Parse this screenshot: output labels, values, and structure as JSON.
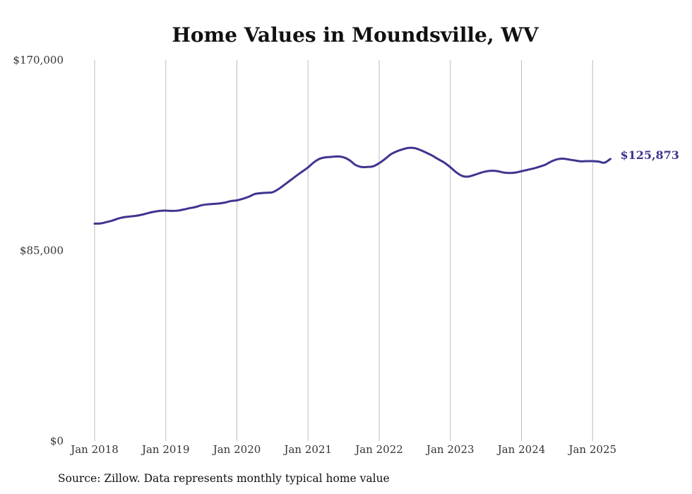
{
  "source_note": "Source: Zillow. Data represents monthly typical home value",
  "chart_data": {
    "type": "line",
    "title": "Home Values in Moundsville, WV",
    "xlabel": "",
    "ylabel": "",
    "ylim": [
      0,
      170000
    ],
    "y_ticks": [
      {
        "value": 170000,
        "label": "$170,000"
      },
      {
        "value": 85000,
        "label": "$85,000"
      },
      {
        "value": 0,
        "label": "$0"
      }
    ],
    "x_ticks": [
      {
        "value": "2018-01",
        "label": "Jan 2018"
      },
      {
        "value": "2019-01",
        "label": "Jan 2019"
      },
      {
        "value": "2020-01",
        "label": "Jan 2020"
      },
      {
        "value": "2021-01",
        "label": "Jan 2021"
      },
      {
        "value": "2022-01",
        "label": "Jan 2022"
      },
      {
        "value": "2023-01",
        "label": "Jan 2023"
      },
      {
        "value": "2024-01",
        "label": "Jan 2024"
      },
      {
        "value": "2025-01",
        "label": "Jan 2025"
      }
    ],
    "grid": {
      "vertical": true,
      "horizontal": false
    },
    "line_color": "#3f3590",
    "end_label": "$125,873",
    "series": [
      {
        "x": [
          "2018-01",
          "2018-02",
          "2018-03",
          "2018-04",
          "2018-05",
          "2018-06",
          "2018-07",
          "2018-08",
          "2018-09",
          "2018-10",
          "2018-11",
          "2018-12",
          "2019-01",
          "2019-02",
          "2019-03",
          "2019-04",
          "2019-05",
          "2019-06",
          "2019-07",
          "2019-08",
          "2019-09",
          "2019-10",
          "2019-11",
          "2019-12",
          "2020-01",
          "2020-02",
          "2020-03",
          "2020-04",
          "2020-05",
          "2020-06",
          "2020-07",
          "2020-08",
          "2020-09",
          "2020-10",
          "2020-11",
          "2020-12",
          "2021-01",
          "2021-02",
          "2021-03",
          "2021-04",
          "2021-05",
          "2021-06",
          "2021-07",
          "2021-08",
          "2021-09",
          "2021-10",
          "2021-11",
          "2021-12",
          "2022-01",
          "2022-02",
          "2022-03",
          "2022-04",
          "2022-05",
          "2022-06",
          "2022-07",
          "2022-08",
          "2022-09",
          "2022-10",
          "2022-11",
          "2022-12",
          "2023-01",
          "2023-02",
          "2023-03",
          "2023-04",
          "2023-05",
          "2023-06",
          "2023-07",
          "2023-08",
          "2023-09",
          "2023-10",
          "2023-11",
          "2023-12",
          "2024-01",
          "2024-02",
          "2024-03",
          "2024-04",
          "2024-05",
          "2024-06",
          "2024-07",
          "2024-08",
          "2024-09",
          "2024-10",
          "2024-11",
          "2024-12",
          "2025-01",
          "2025-02",
          "2025-03",
          "2025-04"
        ],
        "values": [
          97000,
          97100,
          97700,
          98400,
          99300,
          99900,
          100200,
          100500,
          101000,
          101700,
          102300,
          102700,
          102800,
          102700,
          102800,
          103300,
          103900,
          104400,
          105200,
          105600,
          105800,
          106000,
          106400,
          107100,
          107400,
          108100,
          109000,
          110200,
          110600,
          110800,
          111000,
          112400,
          114300,
          116300,
          118300,
          120200,
          122100,
          124400,
          126000,
          126600,
          126800,
          127000,
          126600,
          125300,
          123200,
          122300,
          122300,
          122600,
          124000,
          125900,
          128000,
          129300,
          130200,
          130800,
          130700,
          129800,
          128600,
          127300,
          125700,
          124200,
          122200,
          119900,
          118300,
          118000,
          118700,
          119600,
          120300,
          120600,
          120400,
          119800,
          119600,
          119800,
          120400,
          121000,
          121600,
          122400,
          123300,
          124700,
          125700,
          126000,
          125600,
          125200,
          124800,
          124900,
          124900,
          124700,
          124200,
          125873
        ]
      }
    ]
  }
}
